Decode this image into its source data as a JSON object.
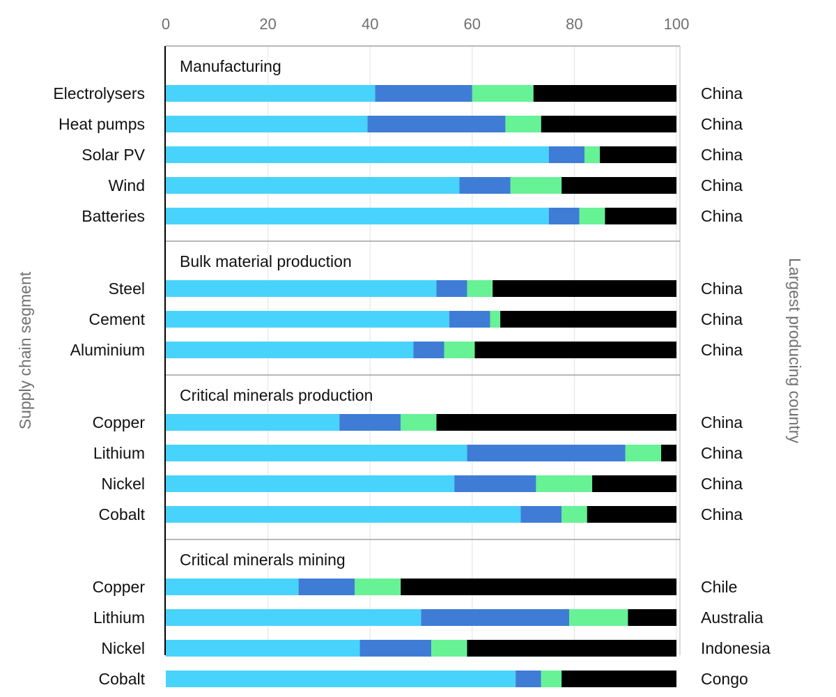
{
  "axes": {
    "left_title": "Supply chain segment",
    "right_title": "Largest producing country"
  },
  "colors": {
    "seg1": "#48d3fc",
    "seg2": "#3f7cd6",
    "seg3": "#66f295",
    "seg4": "#000000",
    "grid": "#e1e1e1",
    "separator": "#a0a0a0"
  },
  "chart_data": {
    "type": "bar",
    "orientation": "horizontal",
    "stacked": true,
    "xlim": [
      0,
      100
    ],
    "x_ticks": [
      "0",
      "20",
      "40",
      "60",
      "80",
      "100"
    ],
    "x_axis_position": "top",
    "grid": true,
    "legend": "none",
    "groups": [
      {
        "title": "Manufacturing",
        "rows": [
          {
            "label": "Electrolysers",
            "country": "China",
            "values": [
              41,
              19,
              12,
              28
            ]
          },
          {
            "label": "Heat pumps",
            "country": "China",
            "values": [
              39.5,
              27,
              7,
              26.5
            ]
          },
          {
            "label": "Solar PV",
            "country": "China",
            "values": [
              75,
              7,
              3,
              15
            ]
          },
          {
            "label": "Wind",
            "country": "China",
            "values": [
              57.5,
              10,
              10,
              22.5
            ]
          },
          {
            "label": "Batteries",
            "country": "China",
            "values": [
              75,
              6,
              5,
              14
            ]
          }
        ]
      },
      {
        "title": "Bulk material production",
        "rows": [
          {
            "label": "Steel",
            "country": "China",
            "values": [
              53,
              6,
              5,
              36
            ]
          },
          {
            "label": "Cement",
            "country": "China",
            "values": [
              55.5,
              8,
              2,
              34.5
            ]
          },
          {
            "label": "Aluminium",
            "country": "China",
            "values": [
              48.5,
              6,
              6,
              39.5
            ]
          }
        ]
      },
      {
        "title": "Critical minerals production",
        "rows": [
          {
            "label": "Copper",
            "country": "China",
            "values": [
              34,
              12,
              7,
              47
            ]
          },
          {
            "label": "Lithium",
            "country": "China",
            "values": [
              59,
              31,
              7,
              3
            ]
          },
          {
            "label": "Nickel",
            "country": "China",
            "values": [
              56.5,
              16,
              11,
              16.5
            ]
          },
          {
            "label": "Cobalt",
            "country": "China",
            "values": [
              69.5,
              8,
              5,
              17.5
            ]
          }
        ]
      },
      {
        "title": "Critical minerals mining",
        "rows": [
          {
            "label": "Copper",
            "country": "Chile",
            "values": [
              26,
              11,
              9,
              54
            ]
          },
          {
            "label": "Lithium",
            "country": "Australia",
            "values": [
              50,
              29,
              11.5,
              9.5
            ]
          },
          {
            "label": "Nickel",
            "country": "Indonesia",
            "values": [
              38,
              14,
              7,
              41
            ]
          },
          {
            "label": "Cobalt",
            "country": "Congo",
            "values": [
              68.5,
              5,
              4,
              22.5
            ]
          }
        ]
      }
    ]
  }
}
